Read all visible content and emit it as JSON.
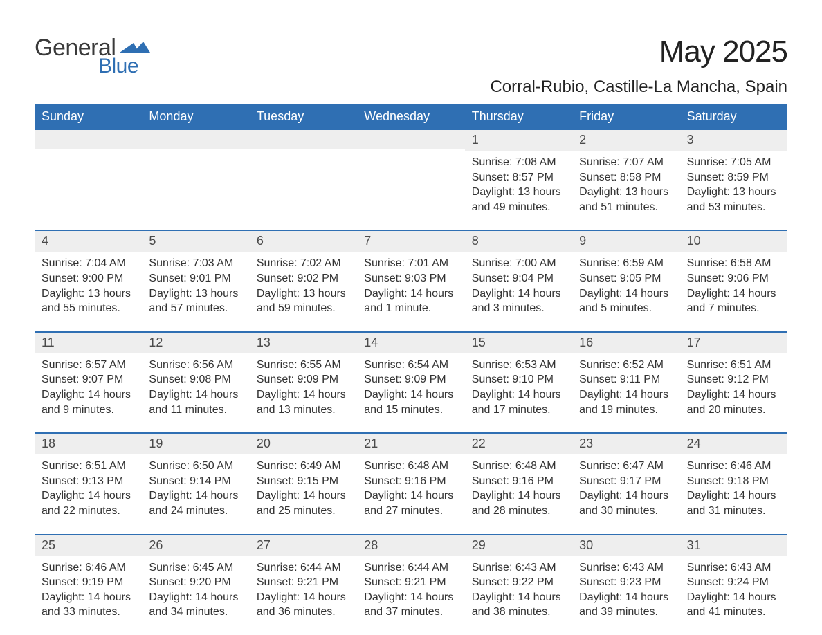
{
  "logo": {
    "word1": "General",
    "word2": "Blue",
    "text_color1": "#3a3a3a",
    "text_color2": "#2f6fb3",
    "flag_color": "#2f6fb3"
  },
  "title": {
    "month": "May 2025",
    "location": "Corral-Rubio, Castille-La Mancha, Spain"
  },
  "colors": {
    "header_bg": "#2f6fb3",
    "header_text": "#ffffff",
    "daynum_bg": "#eeeeee",
    "body_text": "#333333",
    "rule": "#2f6fb3",
    "page_bg": "#ffffff"
  },
  "calendar": {
    "days_of_week": [
      "Sunday",
      "Monday",
      "Tuesday",
      "Wednesday",
      "Thursday",
      "Friday",
      "Saturday"
    ],
    "weeks": [
      [
        null,
        null,
        null,
        null,
        {
          "n": "1",
          "sunrise": "7:08 AM",
          "sunset": "8:57 PM",
          "daylight": "13 hours and 49 minutes."
        },
        {
          "n": "2",
          "sunrise": "7:07 AM",
          "sunset": "8:58 PM",
          "daylight": "13 hours and 51 minutes."
        },
        {
          "n": "3",
          "sunrise": "7:05 AM",
          "sunset": "8:59 PM",
          "daylight": "13 hours and 53 minutes."
        }
      ],
      [
        {
          "n": "4",
          "sunrise": "7:04 AM",
          "sunset": "9:00 PM",
          "daylight": "13 hours and 55 minutes."
        },
        {
          "n": "5",
          "sunrise": "7:03 AM",
          "sunset": "9:01 PM",
          "daylight": "13 hours and 57 minutes."
        },
        {
          "n": "6",
          "sunrise": "7:02 AM",
          "sunset": "9:02 PM",
          "daylight": "13 hours and 59 minutes."
        },
        {
          "n": "7",
          "sunrise": "7:01 AM",
          "sunset": "9:03 PM",
          "daylight": "14 hours and 1 minute."
        },
        {
          "n": "8",
          "sunrise": "7:00 AM",
          "sunset": "9:04 PM",
          "daylight": "14 hours and 3 minutes."
        },
        {
          "n": "9",
          "sunrise": "6:59 AM",
          "sunset": "9:05 PM",
          "daylight": "14 hours and 5 minutes."
        },
        {
          "n": "10",
          "sunrise": "6:58 AM",
          "sunset": "9:06 PM",
          "daylight": "14 hours and 7 minutes."
        }
      ],
      [
        {
          "n": "11",
          "sunrise": "6:57 AM",
          "sunset": "9:07 PM",
          "daylight": "14 hours and 9 minutes."
        },
        {
          "n": "12",
          "sunrise": "6:56 AM",
          "sunset": "9:08 PM",
          "daylight": "14 hours and 11 minutes."
        },
        {
          "n": "13",
          "sunrise": "6:55 AM",
          "sunset": "9:09 PM",
          "daylight": "14 hours and 13 minutes."
        },
        {
          "n": "14",
          "sunrise": "6:54 AM",
          "sunset": "9:09 PM",
          "daylight": "14 hours and 15 minutes."
        },
        {
          "n": "15",
          "sunrise": "6:53 AM",
          "sunset": "9:10 PM",
          "daylight": "14 hours and 17 minutes."
        },
        {
          "n": "16",
          "sunrise": "6:52 AM",
          "sunset": "9:11 PM",
          "daylight": "14 hours and 19 minutes."
        },
        {
          "n": "17",
          "sunrise": "6:51 AM",
          "sunset": "9:12 PM",
          "daylight": "14 hours and 20 minutes."
        }
      ],
      [
        {
          "n": "18",
          "sunrise": "6:51 AM",
          "sunset": "9:13 PM",
          "daylight": "14 hours and 22 minutes."
        },
        {
          "n": "19",
          "sunrise": "6:50 AM",
          "sunset": "9:14 PM",
          "daylight": "14 hours and 24 minutes."
        },
        {
          "n": "20",
          "sunrise": "6:49 AM",
          "sunset": "9:15 PM",
          "daylight": "14 hours and 25 minutes."
        },
        {
          "n": "21",
          "sunrise": "6:48 AM",
          "sunset": "9:16 PM",
          "daylight": "14 hours and 27 minutes."
        },
        {
          "n": "22",
          "sunrise": "6:48 AM",
          "sunset": "9:16 PM",
          "daylight": "14 hours and 28 minutes."
        },
        {
          "n": "23",
          "sunrise": "6:47 AM",
          "sunset": "9:17 PM",
          "daylight": "14 hours and 30 minutes."
        },
        {
          "n": "24",
          "sunrise": "6:46 AM",
          "sunset": "9:18 PM",
          "daylight": "14 hours and 31 minutes."
        }
      ],
      [
        {
          "n": "25",
          "sunrise": "6:46 AM",
          "sunset": "9:19 PM",
          "daylight": "14 hours and 33 minutes."
        },
        {
          "n": "26",
          "sunrise": "6:45 AM",
          "sunset": "9:20 PM",
          "daylight": "14 hours and 34 minutes."
        },
        {
          "n": "27",
          "sunrise": "6:44 AM",
          "sunset": "9:21 PM",
          "daylight": "14 hours and 36 minutes."
        },
        {
          "n": "28",
          "sunrise": "6:44 AM",
          "sunset": "9:21 PM",
          "daylight": "14 hours and 37 minutes."
        },
        {
          "n": "29",
          "sunrise": "6:43 AM",
          "sunset": "9:22 PM",
          "daylight": "14 hours and 38 minutes."
        },
        {
          "n": "30",
          "sunrise": "6:43 AM",
          "sunset": "9:23 PM",
          "daylight": "14 hours and 39 minutes."
        },
        {
          "n": "31",
          "sunrise": "6:43 AM",
          "sunset": "9:24 PM",
          "daylight": "14 hours and 41 minutes."
        }
      ]
    ],
    "labels": {
      "sunrise": "Sunrise:",
      "sunset": "Sunset:",
      "daylight": "Daylight:"
    }
  }
}
